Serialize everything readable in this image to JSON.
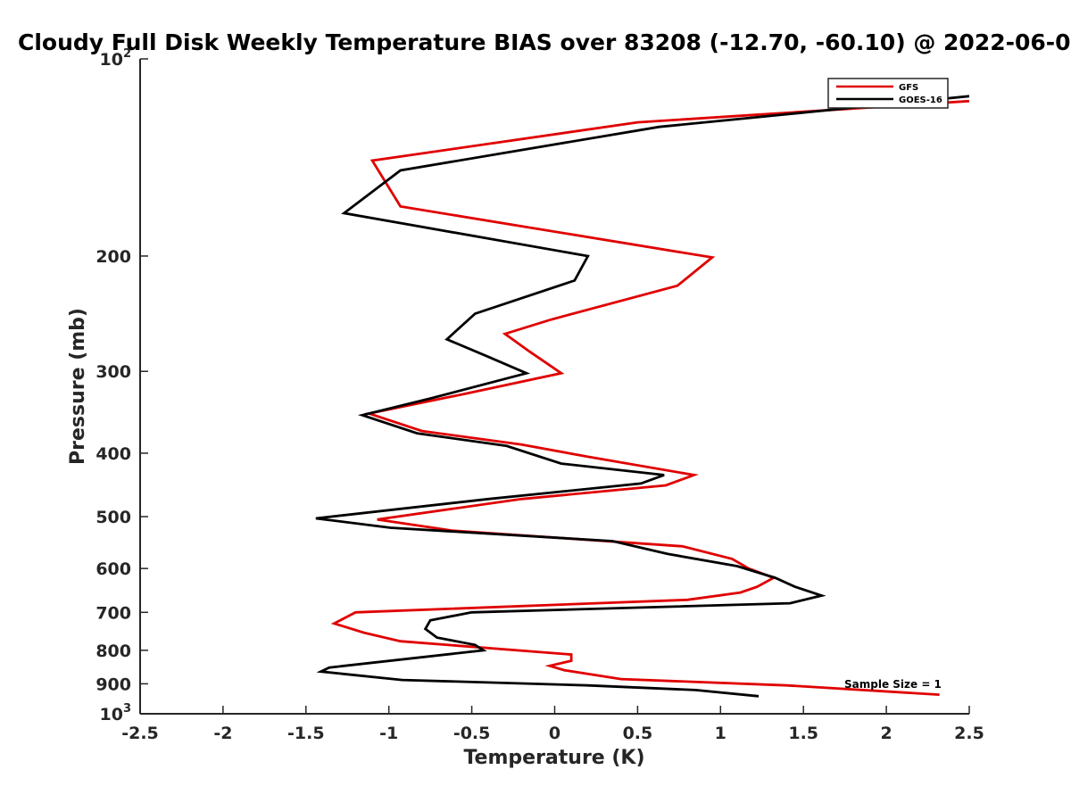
{
  "chart_data": {
    "type": "line",
    "title": "Cloudy Full Disk Weekly Temperature BIAS over 83208 (-12.70, -60.10) @ 2022-06-0",
    "xlabel": "Temperature (K)",
    "ylabel": "Pressure (mb)",
    "xlim": [
      -2.5,
      2.5
    ],
    "ylim": [
      100,
      1000
    ],
    "y_scale": "log",
    "y_reversed": true,
    "x_ticks": [
      "-2.5",
      "-2",
      "-1.5",
      "-1",
      "-0.5",
      "0",
      "0.5",
      "1",
      "1.5",
      "2",
      "2.5"
    ],
    "y_ticks": [
      {
        "value": 100,
        "base": "10",
        "exp": "2"
      },
      {
        "value": 200,
        "label": "200"
      },
      {
        "value": 300,
        "label": "300"
      },
      {
        "value": 400,
        "label": "400"
      },
      {
        "value": 500,
        "label": "500"
      },
      {
        "value": 600,
        "label": "600"
      },
      {
        "value": 700,
        "label": "700"
      },
      {
        "value": 800,
        "label": "800"
      },
      {
        "value": 900,
        "label": "900"
      },
      {
        "value": 1000,
        "base": "10",
        "exp": "3"
      }
    ],
    "grid": false,
    "legend_position": "top-right",
    "annotation": "Sample Size = 1",
    "series": [
      {
        "name": "GFS",
        "color": "#e00000",
        "points": [
          [
            2.5,
            116
          ],
          [
            0.5,
            125
          ],
          [
            -1.1,
            143
          ],
          [
            -0.93,
            168
          ],
          [
            0.95,
            201
          ],
          [
            0.74,
            222
          ],
          [
            -0.02,
            250
          ],
          [
            -0.3,
            263
          ],
          [
            -0.15,
            280
          ],
          [
            0.04,
            302
          ],
          [
            -0.55,
            325
          ],
          [
            -1.12,
            348
          ],
          [
            -0.8,
            370
          ],
          [
            -0.2,
            388
          ],
          [
            0.2,
            405
          ],
          [
            0.84,
            432
          ],
          [
            0.67,
            448
          ],
          [
            -0.2,
            470
          ],
          [
            -1.07,
            505
          ],
          [
            -0.62,
            525
          ],
          [
            0.77,
            555
          ],
          [
            1.07,
            580
          ],
          [
            1.17,
            600
          ],
          [
            1.32,
            620
          ],
          [
            1.22,
            640
          ],
          [
            1.12,
            653
          ],
          [
            0.8,
            670
          ],
          [
            -1.2,
            700
          ],
          [
            -1.33,
            728
          ],
          [
            -1.15,
            752
          ],
          [
            -0.93,
            775
          ],
          [
            0.1,
            812
          ],
          [
            0.1,
            830
          ],
          [
            -0.03,
            845
          ],
          [
            0.06,
            858
          ],
          [
            0.4,
            885
          ],
          [
            1.4,
            905
          ],
          [
            2.32,
            935
          ]
        ]
      },
      {
        "name": "GOES-16",
        "color": "#000000",
        "points": [
          [
            2.5,
            114
          ],
          [
            0.63,
            127
          ],
          [
            -0.93,
            148
          ],
          [
            -1.27,
            172
          ],
          [
            0.2,
            200
          ],
          [
            0.12,
            218
          ],
          [
            -0.48,
            245
          ],
          [
            -0.65,
            268
          ],
          [
            -0.4,
            285
          ],
          [
            -0.17,
            302
          ],
          [
            -0.75,
            330
          ],
          [
            -1.16,
            350
          ],
          [
            -0.83,
            373
          ],
          [
            -0.29,
            390
          ],
          [
            0.04,
            415
          ],
          [
            0.66,
            432
          ],
          [
            0.52,
            445
          ],
          [
            -0.4,
            470
          ],
          [
            -1.44,
            503
          ],
          [
            -0.99,
            520
          ],
          [
            0.35,
            545
          ],
          [
            0.68,
            570
          ],
          [
            1.1,
            595
          ],
          [
            1.33,
            620
          ],
          [
            1.45,
            640
          ],
          [
            1.61,
            660
          ],
          [
            1.42,
            678
          ],
          [
            -0.5,
            700
          ],
          [
            -0.75,
            720
          ],
          [
            -0.78,
            742
          ],
          [
            -0.71,
            765
          ],
          [
            -0.48,
            785
          ],
          [
            -0.43,
            800
          ],
          [
            -1.36,
            850
          ],
          [
            -1.41,
            862
          ],
          [
            -0.92,
            888
          ],
          [
            0.2,
            905
          ],
          [
            0.85,
            920
          ],
          [
            1.23,
            940
          ]
        ]
      }
    ]
  }
}
